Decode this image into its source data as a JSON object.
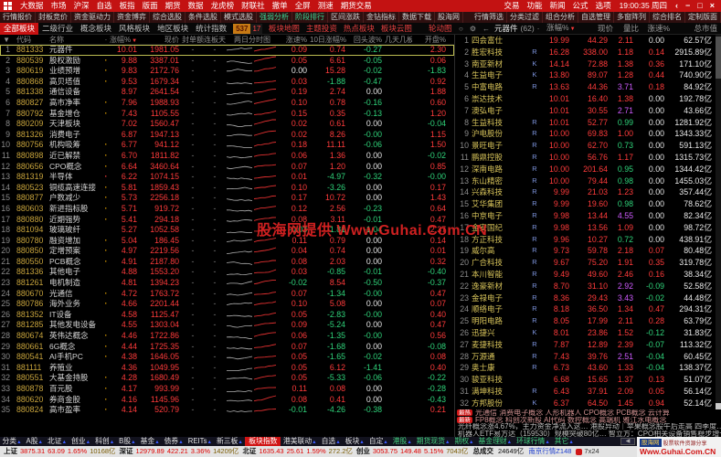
{
  "colors": {
    "up": "#ff3b3b",
    "down": "#2fd37a",
    "flat": "#e8e8e8",
    "magenta": "#cf5bff",
    "code": "#c8a43c",
    "name": "#d6d6d6",
    "flag": "#7f96e0"
  },
  "icons": {
    "back_arrow": "←",
    "sort_down": "▼",
    "tab_up": "▲",
    "dot": "·",
    "search": "○",
    "gear": "⚙",
    "win_back": "‹",
    "win_min": "−",
    "win_restore": "□",
    "win_close": "×",
    "scroll_left": "◀"
  },
  "titlebar": {
    "menus": [
      "大数据",
      "市场",
      "沪深",
      "自选",
      "板指",
      "版面",
      "期货",
      "数据",
      "龙虎榜",
      "财联社",
      "撤单",
      "全屏",
      "测速",
      "期货交易"
    ],
    "right_menus": [
      "交易",
      "功能",
      "新闻",
      "公式",
      "选项"
    ],
    "clock": "19:00:35 周四"
  },
  "toolbar": {
    "items": [
      {
        "label": "行情报价"
      },
      {
        "label": "封板竞价"
      },
      {
        "label": "资金驱动力"
      },
      {
        "label": "资金博弈"
      },
      {
        "label": "综合选股"
      },
      {
        "label": "条件选股"
      },
      {
        "label": "模式选股"
      },
      {
        "label": "强弱分析",
        "green": true
      },
      {
        "label": "阶段排行",
        "green": true
      },
      {
        "label": "区间涨跌"
      },
      {
        "label": "金钻指标"
      },
      {
        "label": "数据下载"
      },
      {
        "label": "股海网"
      }
    ],
    "right_items": [
      "行情筛选",
      "分类过滤",
      "组合分析",
      "自选管理",
      "多窗阵列",
      "综合排名",
      "定制版面"
    ]
  },
  "boards_bar": {
    "tabs": [
      "全部板块",
      "二级行业",
      "概念板块",
      "风格板块",
      "地区板块",
      "统计指数"
    ],
    "active_tab": 0,
    "up_count": "537",
    "down_count": "17",
    "links": [
      "板块地图",
      "主题投资",
      "热点板块",
      "板块云图"
    ],
    "extra_link": "轮动图"
  },
  "left_table": {
    "headers": {
      "num": "",
      "code": "代码",
      "name": "名称",
      "dot": "·",
      "zf": "涨幅%",
      "price": "现价",
      "fd": "封单额",
      "lb": "连板天",
      "chart": "两日分时图",
      "zs": "涨速%",
      "r10": "10日涨幅%",
      "ht": "回头波%",
      "jt": "几天几板",
      "kp": "开盘%"
    },
    "dash": "-",
    "selected_row": 1,
    "rows": [
      [
        1,
        "881333",
        "元器件",
        "",
        "10.01",
        "1981.05",
        "0.09",
        "0.74",
        "-0.27",
        "2.30"
      ],
      [
        2,
        "880539",
        "股权激励",
        "y",
        "9.88",
        "3387.01",
        "0.05",
        "6.61",
        "-0.05",
        "0.06"
      ],
      [
        3,
        "880619",
        "业绩预增",
        "y",
        "9.83",
        "2172.76",
        "0.00",
        "15.28",
        "-0.02",
        "-1.83"
      ],
      [
        4,
        "880868",
        "高贝塔值",
        "y",
        "9.53",
        "1679.34",
        "0.03",
        "-1.88",
        "-0.47",
        "0.92"
      ],
      [
        5,
        "881338",
        "通信设备",
        "",
        "8.97",
        "2641.54",
        "0.19",
        "2.74",
        "0.00",
        "1.88"
      ],
      [
        6,
        "880827",
        "高市净率",
        "y",
        "7.96",
        "1988.93",
        "0.10",
        "0.78",
        "-0.16",
        "0.60"
      ],
      [
        7,
        "880792",
        "基金增仓",
        "y",
        "7.43",
        "1105.55",
        "0.15",
        "0.35",
        "-0.13",
        "1.20"
      ],
      [
        8,
        "880209",
        "天津板块",
        "",
        "7.02",
        "1560.47",
        "0.02",
        "0.61",
        "0.00",
        "-0.04"
      ],
      [
        9,
        "881326",
        "消费电子",
        "",
        "6.87",
        "1947.13",
        "0.02",
        "8.26",
        "-0.00",
        "1.15"
      ],
      [
        10,
        "880756",
        "机构吸筹",
        "y",
        "6.77",
        "941.12",
        "0.18",
        "11.11",
        "-0.06",
        "1.50"
      ],
      [
        11,
        "880898",
        "近已解禁",
        "y",
        "6.70",
        "1811.82",
        "0.06",
        "1.36",
        "0.00",
        "-0.02"
      ],
      [
        12,
        "880656",
        "CPO概念",
        "y",
        "6.64",
        "3460.64",
        "0.07",
        "1.20",
        "0.00",
        "0.85"
      ],
      [
        13,
        "881319",
        "半导体",
        "r",
        "6.22",
        "1074.15",
        "0.01",
        "-4.97",
        "-0.32",
        "-0.00"
      ],
      [
        14,
        "880523",
        "铜缆高速连接",
        "y",
        "5.81",
        "1859.43",
        "0.10",
        "-3.26",
        "0.00",
        "0.17"
      ],
      [
        15,
        "880877",
        "户数减少",
        "y",
        "5.73",
        "2256.18",
        "0.17",
        "10.72",
        "0.00",
        "1.43"
      ],
      [
        16,
        "880603",
        "新进指标股",
        "y",
        "5.71",
        "919.72",
        "0.12",
        "2.56",
        "-0.23",
        "0.64"
      ],
      [
        17,
        "880880",
        "近期强势",
        "y",
        "5.41",
        "294.18",
        "0.08",
        "3.11",
        "-0.01",
        "0.47"
      ],
      [
        18,
        "881094",
        "玻璃玻纤",
        "",
        "5.27",
        "1052.58",
        "-0.03",
        "-1.81",
        "-1.04",
        "2.37"
      ],
      [
        19,
        "880780",
        "融资增加",
        "y",
        "5.04",
        "186.45",
        "0.11",
        "0.79",
        "0.00",
        "0.14"
      ],
      [
        20,
        "880850",
        "定增预案",
        "y",
        "4.97",
        "2219.56",
        "0.04",
        "0.74",
        "0.00",
        "0.01"
      ],
      [
        21,
        "880550",
        "PCB概念",
        "y",
        "4.91",
        "2187.80",
        "0.08",
        "2.03",
        "0.00",
        "0.32"
      ],
      [
        22,
        "881336",
        "其他电子",
        "",
        "4.88",
        "1553.20",
        "0.03",
        "-0.85",
        "-0.01",
        "-0.40"
      ],
      [
        23,
        "881261",
        "电机制造",
        "",
        "4.81",
        "1394.23",
        "-0.02",
        "8.54",
        "-0.50",
        "-0.37"
      ],
      [
        24,
        "880670",
        "光通信",
        "y",
        "4.72",
        "1763.72",
        "0.07",
        "-1.34",
        "-0.00",
        "0.47"
      ],
      [
        25,
        "880786",
        "海外业务",
        "y",
        "4.66",
        "2201.44",
        "0.10",
        "5.08",
        "0.00",
        "0.07"
      ],
      [
        26,
        "881352",
        "IT设备",
        "",
        "4.58",
        "1125.47",
        "0.05",
        "-2.83",
        "-0.00",
        "0.40"
      ],
      [
        27,
        "881285",
        "其他发电设备",
        "",
        "4.55",
        "1303.04",
        "0.09",
        "-5.24",
        "0.00",
        "0.47"
      ],
      [
        28,
        "880674",
        "英伟达概念",
        "y",
        "4.46",
        "1722.86",
        "0.06",
        "-1.35",
        "-0.00",
        "0.56"
      ],
      [
        29,
        "880661",
        "6G概念",
        "y",
        "4.44",
        "1725.35",
        "0.07",
        "-1.68",
        "0.00",
        "-0.08"
      ],
      [
        30,
        "880541",
        "AI手机PC",
        "y",
        "4.38",
        "1646.05",
        "0.05",
        "-1.65",
        "-0.02",
        "0.08"
      ],
      [
        31,
        "881111",
        "养殖业",
        "",
        "4.36",
        "1049.95",
        "0.05",
        "6.12",
        "-1.41",
        "0.40"
      ],
      [
        32,
        "880551",
        "大基金持股",
        "y",
        "4.28",
        "1680.49",
        "0.05",
        "-5.33",
        "-0.06",
        "-0.22"
      ],
      [
        33,
        "880878",
        "百元股",
        "y",
        "4.17",
        "993.99",
        "0.11",
        "0.08",
        "0.00",
        "-0.28"
      ],
      [
        34,
        "880620",
        "券商金股",
        "y",
        "4.16",
        "1145.96",
        "0.08",
        "0.41",
        "0.00",
        "-0.43"
      ],
      [
        35,
        "880824",
        "高市盈率",
        "y",
        "4.14",
        "520.79",
        "-0.01",
        "-4.26",
        "-0.38",
        "0.21"
      ]
    ]
  },
  "right_panel": {
    "title": "元器件",
    "count": "(62)",
    "headers": [
      "涨幅%",
      "现价",
      "量比",
      "涨速%",
      "总市值"
    ],
    "rows": [
      [
        1,
        "四会富仕",
        "",
        "19.99",
        "44.29",
        "2.11",
        "0.00",
        "62.57亿"
      ],
      [
        2,
        "胜宏科技",
        "R",
        "16.28",
        "338.00",
        "1.18",
        "0.14",
        "2915.89亿"
      ],
      [
        3,
        "南亚新材",
        "K",
        "14.14",
        "72.88",
        "1.38",
        "0.36",
        "171.10亿"
      ],
      [
        4,
        "生益电子",
        "K",
        "13.80",
        "89.07",
        "1.28",
        "0.44",
        "740.90亿"
      ],
      [
        5,
        "中富电路",
        "R",
        "13.63",
        "44.36",
        "3.71",
        "0.18",
        "84.92亿"
      ],
      [
        6,
        "崇达技术",
        "",
        "10.01",
        "16.40",
        "1.38",
        "0.00",
        "192.78亿"
      ],
      [
        7,
        "澳弘电子",
        "",
        "10.01",
        "30.55",
        "2.71",
        "0.00",
        "43.66亿"
      ],
      [
        8,
        "生益科技",
        "R",
        "10.01",
        "52.77",
        "0.99",
        "0.00",
        "1281.92亿"
      ],
      [
        9,
        "沪电股份",
        "R",
        "10.00",
        "69.83",
        "1.00",
        "0.00",
        "1343.33亿"
      ],
      [
        10,
        "景旺电子",
        "R",
        "10.00",
        "62.70",
        "0.73",
        "0.00",
        "591.13亿"
      ],
      [
        11,
        "鹏鼎控股",
        "R",
        "10.00",
        "56.76",
        "1.17",
        "0.00",
        "1315.73亿"
      ],
      [
        12,
        "深南电路",
        "R",
        "10.00",
        "201.64",
        "0.95",
        "0.00",
        "1344.42亿"
      ],
      [
        13,
        "东山精密",
        "R",
        "10.00",
        "79.44",
        "0.98",
        "0.00",
        "1455.03亿"
      ],
      [
        14,
        "兴森科技",
        "R",
        "9.99",
        "21.03",
        "1.23",
        "0.00",
        "357.44亿"
      ],
      [
        15,
        "艾华集团",
        "R",
        "9.99",
        "19.60",
        "0.98",
        "0.00",
        "78.62亿"
      ],
      [
        16,
        "中京电子",
        "R",
        "9.98",
        "13.44",
        "4.55",
        "0.00",
        "82.34亿"
      ],
      [
        17,
        "金安国纪",
        "R",
        "9.98",
        "13.56",
        "1.09",
        "0.00",
        "98.72亿"
      ],
      [
        18,
        "方正科技",
        "R",
        "9.96",
        "10.27",
        "0.72",
        "0.00",
        "438.91亿"
      ],
      [
        19,
        "威尔高",
        "R",
        "9.73",
        "59.78",
        "2.18",
        "0.07",
        "80.48亿"
      ],
      [
        20,
        "广合科技",
        "R",
        "9.67",
        "75.20",
        "1.91",
        "0.35",
        "319.78亿"
      ],
      [
        21,
        "本川智能",
        "R",
        "9.49",
        "49.60",
        "2.46",
        "0.16",
        "38.34亿"
      ],
      [
        22,
        "逸豪新材",
        "R",
        "8.70",
        "31.10",
        "2.92",
        "-0.09",
        "52.58亿"
      ],
      [
        23,
        "金禄电子",
        "R",
        "8.36",
        "29.43",
        "3.43",
        "-0.02",
        "44.48亿"
      ],
      [
        24,
        "顺络电子",
        "R",
        "8.18",
        "36.50",
        "1.34",
        "0.47",
        "294.31亿"
      ],
      [
        25,
        "明阳电路",
        "R",
        "8.05",
        "17.99",
        "2.11",
        "0.28",
        "63.79亿"
      ],
      [
        26,
        "迅捷兴",
        "K",
        "8.01",
        "23.86",
        "1.52",
        "-0.12",
        "31.83亿"
      ],
      [
        27,
        "麦捷科技",
        "R",
        "7.87",
        "12.89",
        "2.39",
        "-0.07",
        "113.32亿"
      ],
      [
        28,
        "万源通",
        "R",
        "7.43",
        "39.76",
        "2.51",
        "-0.04",
        "60.45亿"
      ],
      [
        29,
        "奥士康",
        "R",
        "6.73",
        "43.60",
        "1.33",
        "-0.04",
        "138.37亿"
      ],
      [
        30,
        "骏亚科技",
        "",
        "6.68",
        "15.65",
        "1.37",
        "0.13",
        "51.07亿"
      ],
      [
        31,
        "满坤科技",
        "R",
        "6.43",
        "37.91",
        "2.09",
        "0.05",
        "56.14亿"
      ],
      [
        32,
        "方邦股份",
        "K",
        "6.37",
        "64.50",
        "1.45",
        "0.94",
        "52.14亿"
      ]
    ]
  },
  "news": {
    "lines": [
      {
        "badge": "最热",
        "text": "光通信 消费电子概念 人形机器人 CPO概念 PCB概念 云计算",
        "hot": true
      },
      {
        "badge": "最新",
        "text": "FP8概念 科创次新股 AI代码 数控概念 高端机 雅江水电概念",
        "hot": true
      },
      {
        "badge": "",
        "text": "光纤概念涨4.67%，主力资金净流入这… 港股异动｜苹果概念股午后走高 四季度…",
        "hot": false
      },
      {
        "badge": "",
        "text": "机器人ETF易方达（159530）规模突破80亿… 智立方：CPO相关设备销售稳步增长",
        "hot": false
      }
    ]
  },
  "footer": {
    "tabs": [
      {
        "label": "分类"
      },
      {
        "label": "A股"
      },
      {
        "label": "北证"
      },
      {
        "label": "创业"
      },
      {
        "label": "科创"
      },
      {
        "label": "B股"
      },
      {
        "label": "基金"
      },
      {
        "label": "债券"
      },
      {
        "label": "REITs"
      },
      {
        "label": "新三板"
      },
      {
        "label": "板块指数",
        "active": true
      },
      {
        "label": "港美联动"
      },
      {
        "label": "自选"
      },
      {
        "label": "板块"
      },
      {
        "label": "自定"
      },
      {
        "label": "港股",
        "green": true
      },
      {
        "label": "期货现货",
        "green": true
      },
      {
        "label": "期权",
        "green": true
      },
      {
        "label": "基金理财",
        "green": true
      },
      {
        "label": "环球行情",
        "green": true
      },
      {
        "label": "其它",
        "green": true
      }
    ],
    "indices": [
      {
        "label": "上证",
        "value": "3875.31",
        "chg": "63.09",
        "pct": "1.65%",
        "amt": "10168亿"
      },
      {
        "label": "深证",
        "value": "12979.89",
        "chg": "422.21",
        "pct": "3.36%",
        "amt": "14209亿"
      },
      {
        "label": "北证",
        "value": "1635.43",
        "chg": "25.61",
        "pct": "1.59%",
        "amt": "272.2亿"
      },
      {
        "label": "创业",
        "value": "3053.75",
        "chg": "149.48",
        "pct": "5.15%",
        "amt": "7043亿"
      }
    ],
    "total_label": "总成交",
    "total_value": "24649亿",
    "feed": "南京行情Z148",
    "x724": "7x24"
  },
  "guhai": {
    "name": "股海网",
    "tagline": "股票软件资源分享",
    "url": "Www.Guhai.Com.CN"
  },
  "watermark": "股海网提供 Www.Guhai.Com.CN"
}
